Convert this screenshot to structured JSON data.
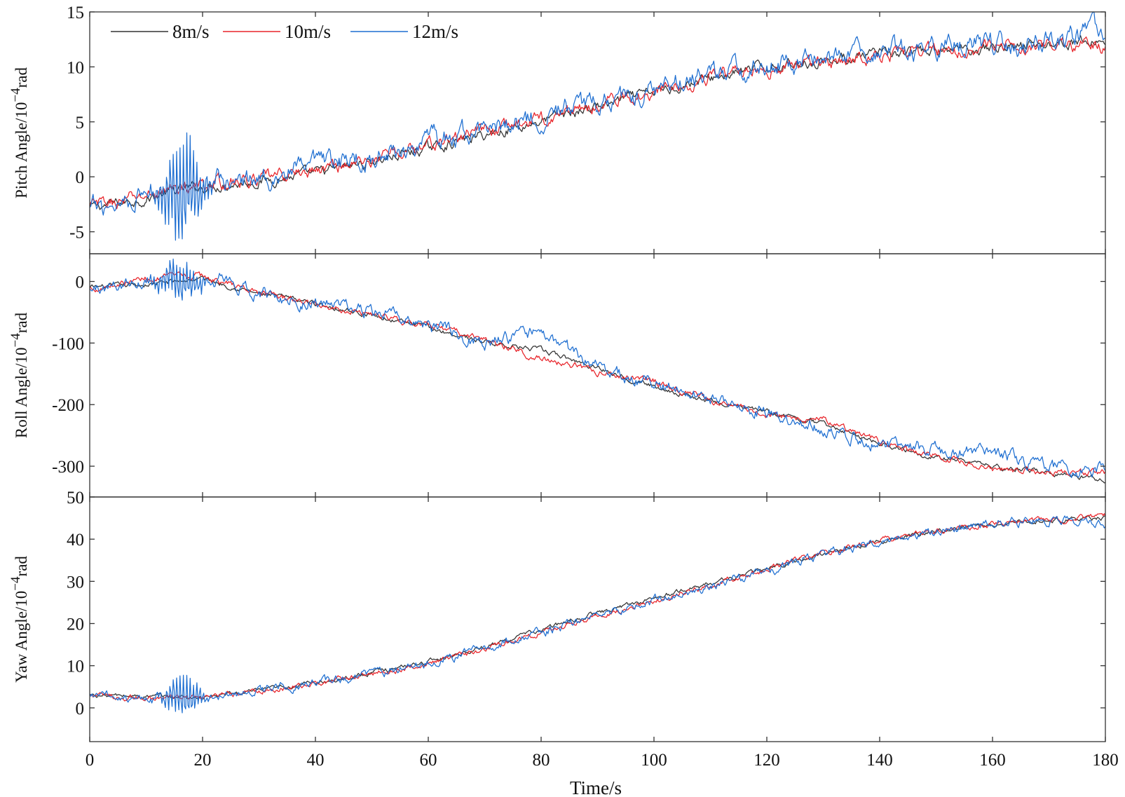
{
  "chart_data": [
    {
      "type": "line",
      "ylabel": "Pitch Angle/10",
      "ylabel_sup": "−4",
      "ylabel_unit": "rad",
      "xlim": [
        0,
        180
      ],
      "ylim": [
        -7,
        15
      ],
      "yticks": [
        -5,
        0,
        5,
        10,
        15
      ],
      "ytick_labels": [
        "-5",
        "0",
        "5",
        "10",
        "15"
      ],
      "grid": false,
      "series": [
        {
          "name": "8m/s",
          "color": "#333333",
          "x": [
            0,
            5,
            10,
            15,
            20,
            30,
            40,
            50,
            60,
            70,
            80,
            90,
            100,
            110,
            120,
            130,
            140,
            150,
            160,
            170,
            180
          ],
          "y": [
            -2.8,
            -2.4,
            -2.0,
            -1.3,
            -0.9,
            -0.4,
            0.3,
            1.4,
            2.6,
            3.8,
            5.1,
            6.4,
            7.7,
            9.0,
            10.0,
            10.6,
            11.1,
            11.4,
            11.8,
            12.1,
            12.3
          ],
          "noise": 0.35
        },
        {
          "name": "10m/s",
          "color": "#e8242a",
          "x": [
            0,
            5,
            10,
            15,
            20,
            30,
            40,
            50,
            60,
            70,
            80,
            90,
            100,
            110,
            120,
            130,
            140,
            150,
            160,
            170,
            180
          ],
          "y": [
            -2.7,
            -2.3,
            -1.7,
            -1.1,
            -0.8,
            -0.3,
            0.6,
            1.6,
            2.9,
            4.2,
            5.3,
            6.6,
            7.8,
            9.1,
            9.8,
            10.4,
            11.1,
            11.5,
            11.8,
            12.0,
            11.8
          ],
          "noise": 0.45
        },
        {
          "name": "12m/s",
          "color": "#1f6fd1",
          "x": [
            0,
            5,
            10,
            15,
            20,
            30,
            40,
            50,
            60,
            70,
            80,
            90,
            100,
            110,
            120,
            130,
            140,
            150,
            160,
            170,
            180
          ],
          "y": [
            -3.0,
            -2.2,
            -1.5,
            -1.0,
            -0.6,
            -0.2,
            0.9,
            1.8,
            3.1,
            4.3,
            5.6,
            6.7,
            8.0,
            9.4,
            10.0,
            10.8,
            11.3,
            11.7,
            12.0,
            12.2,
            13.5
          ],
          "noise": 0.7,
          "burst": {
            "center": 16.5,
            "width": 5,
            "amplitude": 5
          }
        }
      ]
    },
    {
      "type": "line",
      "ylabel": "Roll Angle/10",
      "ylabel_sup": "−4",
      "ylabel_unit": "rad",
      "xlim": [
        0,
        180
      ],
      "ylim": [
        -350,
        45
      ],
      "yticks": [
        -300,
        -200,
        -100,
        0
      ],
      "ytick_labels": [
        "-300",
        "-200",
        "-100",
        "0"
      ],
      "grid": false,
      "series": [
        {
          "name": "8m/s",
          "color": "#333333",
          "x": [
            0,
            10,
            20,
            30,
            40,
            50,
            60,
            70,
            80,
            90,
            100,
            110,
            120,
            130,
            140,
            150,
            160,
            170,
            180
          ],
          "y": [
            -10,
            -5,
            5,
            -20,
            -35,
            -55,
            -75,
            -98,
            -112,
            -140,
            -170,
            -195,
            -212,
            -232,
            -262,
            -285,
            -300,
            -310,
            -322
          ],
          "noise": 3
        },
        {
          "name": "10m/s",
          "color": "#e8242a",
          "x": [
            0,
            10,
            20,
            30,
            40,
            50,
            60,
            70,
            80,
            90,
            100,
            110,
            120,
            130,
            140,
            150,
            160,
            170,
            180
          ],
          "y": [
            -12,
            5,
            8,
            -18,
            -38,
            -52,
            -72,
            -95,
            -125,
            -148,
            -160,
            -195,
            -215,
            -225,
            -260,
            -285,
            -305,
            -308,
            -312
          ],
          "noise": 4
        },
        {
          "name": "12m/s",
          "color": "#1f6fd1",
          "x": [
            0,
            10,
            20,
            30,
            40,
            50,
            60,
            70,
            80,
            90,
            100,
            110,
            120,
            130,
            140,
            150,
            160,
            170,
            180
          ],
          "y": [
            -15,
            5,
            5,
            -20,
            -35,
            -50,
            -72,
            -98,
            -85,
            -140,
            -165,
            -188,
            -215,
            -238,
            -262,
            -275,
            -280,
            -300,
            -310
          ],
          "noise": 8,
          "burst": {
            "center": 16,
            "width": 6,
            "amplitude": 30
          }
        }
      ]
    },
    {
      "type": "line",
      "xlabel": "Time/s",
      "ylabel": "Yaw Angle/10",
      "ylabel_sup": "−4",
      "ylabel_unit": "rad",
      "xlim": [
        0,
        180
      ],
      "xticks": [
        0,
        20,
        40,
        60,
        80,
        100,
        120,
        140,
        160,
        180
      ],
      "xtick_labels": [
        "0",
        "20",
        "40",
        "60",
        "80",
        "100",
        "120",
        "140",
        "160",
        "180"
      ],
      "ylim": [
        -8,
        50
      ],
      "yticks": [
        0,
        10,
        20,
        30,
        40,
        50
      ],
      "ytick_labels": [
        "0",
        "10",
        "20",
        "30",
        "40",
        "50"
      ],
      "grid": false,
      "series": [
        {
          "name": "8m/s",
          "color": "#333333",
          "x": [
            0,
            10,
            20,
            30,
            40,
            50,
            60,
            70,
            80,
            90,
            100,
            110,
            120,
            130,
            140,
            150,
            160,
            170,
            180
          ],
          "y": [
            3,
            2.7,
            2.5,
            4,
            6,
            8.3,
            11,
            14.5,
            18.5,
            22.5,
            26,
            29.5,
            33,
            36.5,
            39.5,
            42,
            43.5,
            44.5,
            45
          ],
          "noise": 0.4
        },
        {
          "name": "10m/s",
          "color": "#e8242a",
          "x": [
            0,
            10,
            20,
            30,
            40,
            50,
            60,
            70,
            80,
            90,
            100,
            110,
            120,
            130,
            140,
            150,
            160,
            170,
            180
          ],
          "y": [
            3,
            2.3,
            2.4,
            3.9,
            5.8,
            8,
            10.5,
            14,
            17.8,
            21.8,
            25.5,
            29,
            33,
            36.5,
            39.8,
            42,
            43.5,
            44.5,
            45.5
          ],
          "noise": 0.5
        },
        {
          "name": "12m/s",
          "color": "#1f6fd1",
          "x": [
            0,
            10,
            20,
            30,
            40,
            50,
            60,
            70,
            80,
            90,
            100,
            110,
            120,
            130,
            140,
            150,
            160,
            170,
            180
          ],
          "y": [
            3,
            2.5,
            2.3,
            4,
            6,
            8,
            10.8,
            14.2,
            18,
            21.5,
            25.5,
            29,
            32.5,
            36,
            39.5,
            41.5,
            43.5,
            44.5,
            43.5
          ],
          "noise": 0.8,
          "burst": {
            "center": 16.5,
            "width": 4.5,
            "amplitude": 5.5
          }
        }
      ]
    }
  ],
  "legend": {
    "placement": "top-left",
    "items": [
      {
        "label": "8m/s",
        "color": "#333333"
      },
      {
        "label": "10m/s",
        "color": "#e8242a"
      },
      {
        "label": "12m/s",
        "color": "#1f6fd1"
      }
    ]
  }
}
